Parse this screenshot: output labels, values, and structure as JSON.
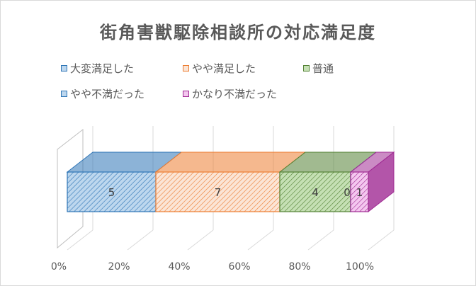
{
  "chart_data": {
    "type": "bar",
    "orientation": "horizontal-stacked-100",
    "title": "街角害獣駆除相談所の対応満足度",
    "series": [
      {
        "name": "大変満足した",
        "value": 5,
        "label": "5",
        "color": "#2e75b6",
        "fill": "#bdd7ee"
      },
      {
        "name": "やや満足した",
        "value": 7,
        "label": "7",
        "color": "#ed7d31",
        "fill": "#fbe5d6"
      },
      {
        "name": "普通",
        "value": 4,
        "label": "4",
        "color": "#548235",
        "fill": "#c5e0b4"
      },
      {
        "name": "やや不満だった",
        "value": 0,
        "label": "0",
        "color": "#2e75b6",
        "fill": "#bdd7ee"
      },
      {
        "name": "かなり不満だった",
        "value": 1,
        "label": "1",
        "color": "#a02b93",
        "fill": "#f4c7ef"
      }
    ],
    "x_ticks": [
      "0%",
      "20%",
      "40%",
      "60%",
      "80%",
      "100%"
    ],
    "xlim": [
      0,
      1
    ],
    "legend_position": "top",
    "grid": true
  }
}
